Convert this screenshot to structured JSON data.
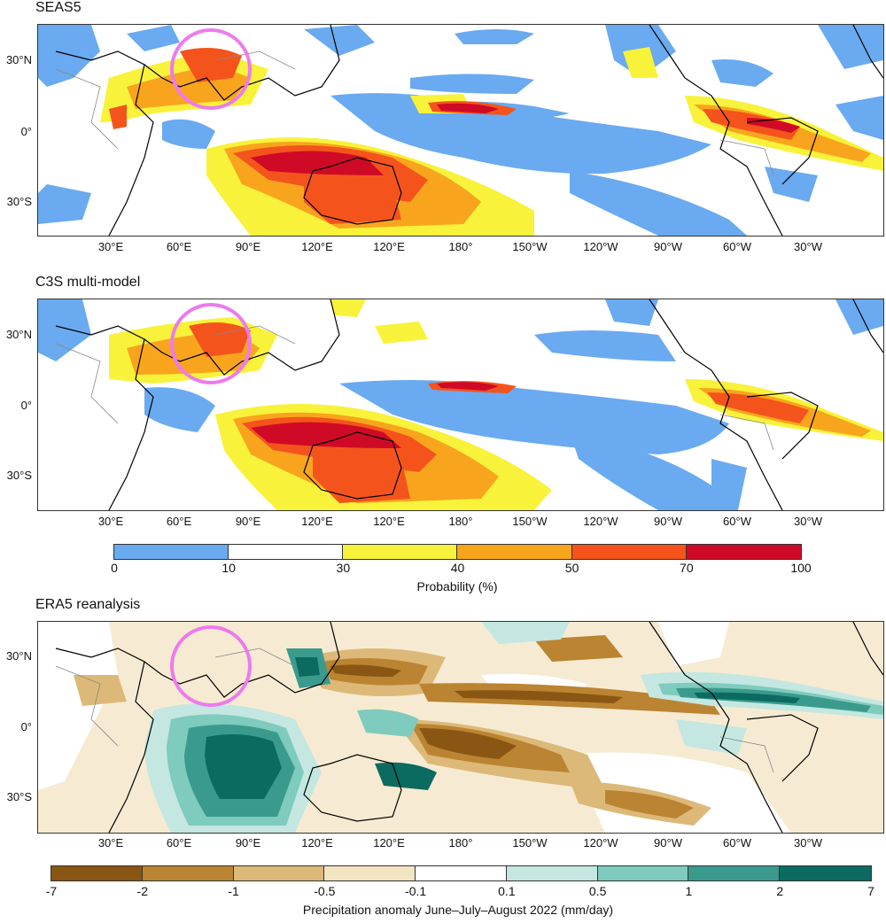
{
  "panels": [
    {
      "title": "SEAS5"
    },
    {
      "title": "C3S multi-model"
    },
    {
      "title": "ERA5 reanalysis"
    }
  ],
  "lat_labels": [
    "30°N",
    "0°",
    "30°S"
  ],
  "lon_labels": [
    "30°E",
    "60°E",
    "90°E",
    "120°E",
    "120°E",
    "180°",
    "150°W",
    "120°W",
    "90°W",
    "60°W",
    "30°W"
  ],
  "probability_colorbar": {
    "label": "Probability (%)",
    "ticks": [
      "0",
      "10",
      "30",
      "40",
      "50",
      "70",
      "100"
    ],
    "colors": [
      "#6aaaf0",
      "#ffffff",
      "#f8f23a",
      "#f8a51d",
      "#f4541c",
      "#cf0a26"
    ]
  },
  "anomaly_colorbar": {
    "label": "Precipitation anomaly June–July–August 2022 (mm/day)",
    "ticks": [
      "-7",
      "-2",
      "-1",
      "-0.5",
      "-0.1",
      "0.1",
      "0.5",
      "1",
      "2",
      "7"
    ],
    "colors": [
      "#8a5614",
      "#bb8432",
      "#dcb978",
      "#f3e4c2",
      "#ffffff",
      "#c4e7e1",
      "#7fcbbd",
      "#3a9a8d",
      "#0b6b60"
    ]
  },
  "highlight_color": "#ee7aee"
}
